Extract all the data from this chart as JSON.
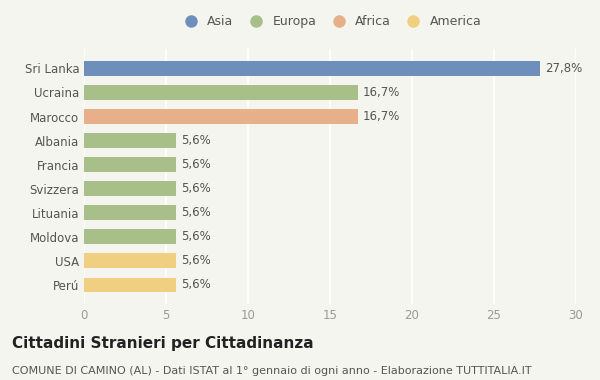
{
  "categories": [
    "Sri Lanka",
    "Ucraina",
    "Marocco",
    "Albania",
    "Francia",
    "Svizzera",
    "Lituania",
    "Moldova",
    "USA",
    "Perú"
  ],
  "values": [
    27.8,
    16.7,
    16.7,
    5.6,
    5.6,
    5.6,
    5.6,
    5.6,
    5.6,
    5.6
  ],
  "labels": [
    "27,8%",
    "16,7%",
    "16,7%",
    "5,6%",
    "5,6%",
    "5,6%",
    "5,6%",
    "5,6%",
    "5,6%",
    "5,6%"
  ],
  "colors": [
    "#6e8fbc",
    "#a8bf8a",
    "#e8b08a",
    "#a8bf8a",
    "#a8bf8a",
    "#a8bf8a",
    "#a8bf8a",
    "#a8bf8a",
    "#f0d080",
    "#f0d080"
  ],
  "legend": [
    {
      "label": "Asia",
      "color": "#6e8fbc"
    },
    {
      "label": "Europa",
      "color": "#a8bf8a"
    },
    {
      "label": "Africa",
      "color": "#e8b08a"
    },
    {
      "label": "America",
      "color": "#f0d080"
    }
  ],
  "xlim": [
    0,
    30
  ],
  "xticks": [
    0,
    5,
    10,
    15,
    20,
    25,
    30
  ],
  "title": "Cittadini Stranieri per Cittadinanza",
  "subtitle": "COMUNE DI CAMINO (AL) - Dati ISTAT al 1° gennaio di ogni anno - Elaborazione TUTTITALIA.IT",
  "background_color": "#f5f5f0",
  "title_fontsize": 11,
  "subtitle_fontsize": 8,
  "tick_fontsize": 8.5,
  "label_fontsize": 8.5,
  "legend_fontsize": 9
}
